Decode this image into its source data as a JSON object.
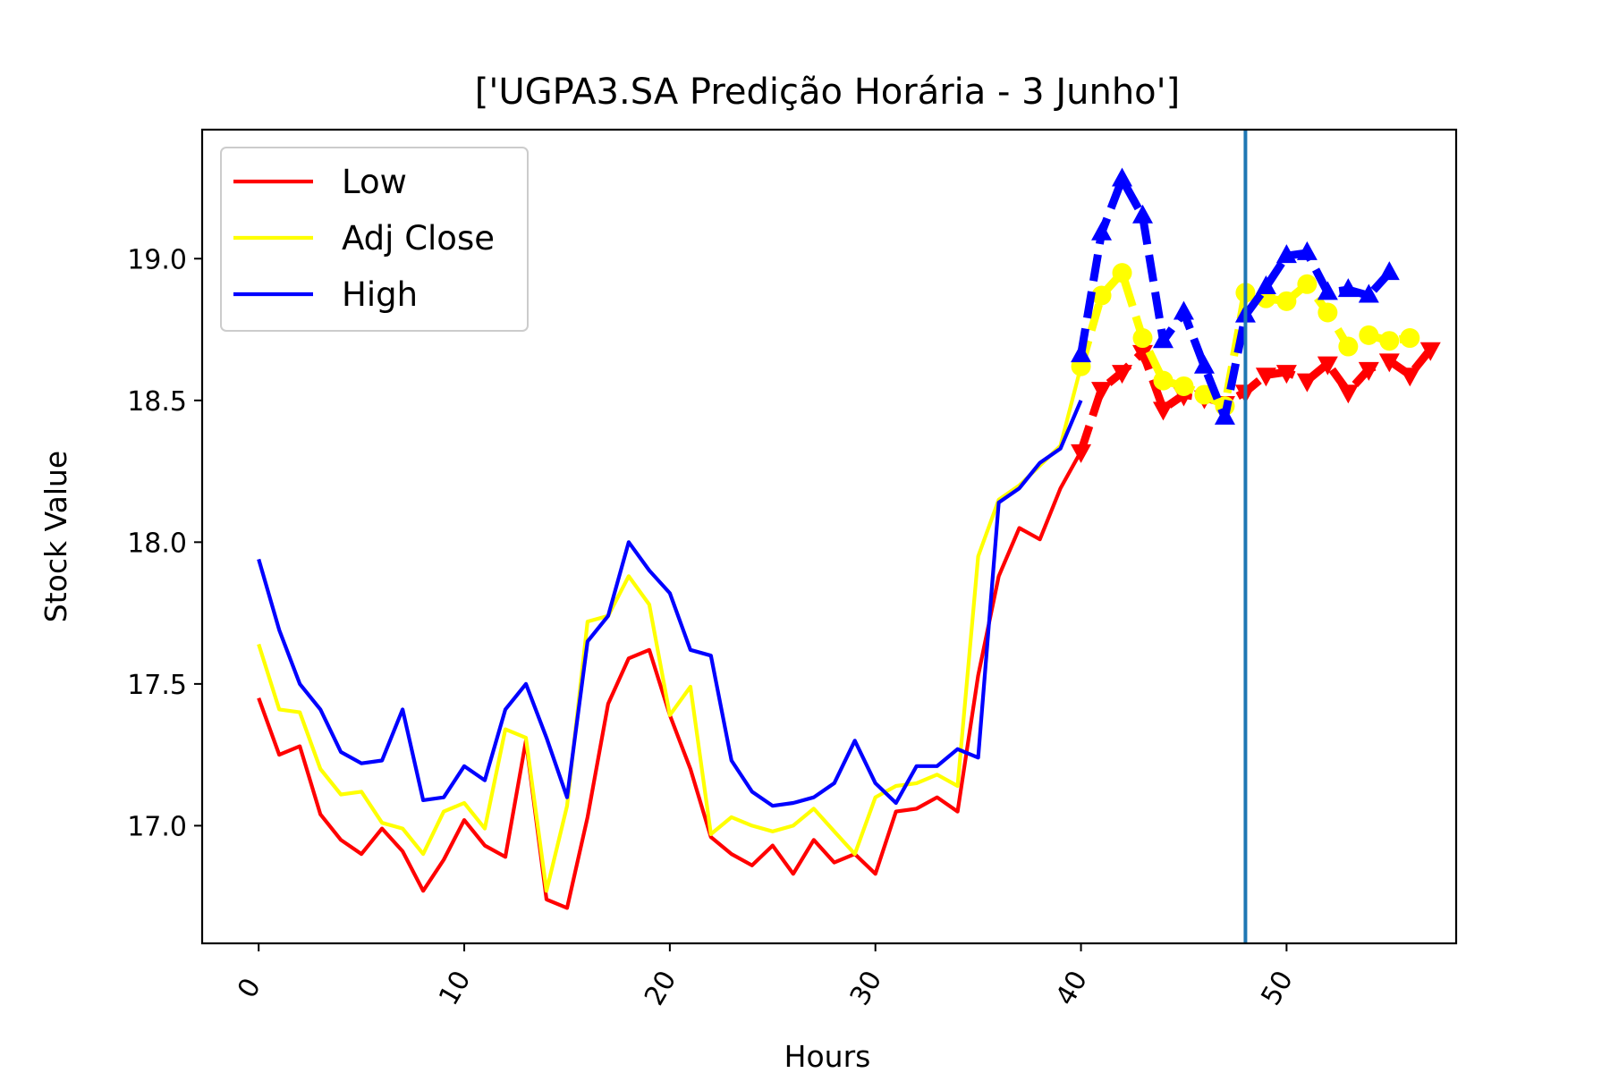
{
  "chart_data": {
    "type": "line",
    "title": "['UGPA3.SA Predição Horária - 3 Junho']",
    "xlabel": "Hours",
    "ylabel": "Stock Value",
    "xlim": [
      -2.75,
      58.25
    ],
    "ylim": [
      16.585,
      19.455
    ],
    "xticks": [
      0,
      10,
      20,
      30,
      40,
      50
    ],
    "xtick_labels": [
      "0",
      "10",
      "20",
      "30",
      "40",
      "50"
    ],
    "yticks": [
      17.0,
      17.5,
      18.0,
      18.5,
      19.0
    ],
    "ytick_labels": [
      "17.0",
      "17.5",
      "18.0",
      "18.5",
      "19.0"
    ],
    "grid": false,
    "legend_position": "top-left",
    "vline_x": 48,
    "vline_color": "#1f77b4",
    "series": [
      {
        "name": "Low",
        "color": "#ff0000",
        "values": [
          17.45,
          17.25,
          17.28,
          17.04,
          16.95,
          16.9,
          16.99,
          16.91,
          16.77,
          16.88,
          17.02,
          16.93,
          16.89,
          17.3,
          16.74,
          16.71,
          17.03,
          17.43,
          17.59,
          17.62,
          17.39,
          17.2,
          16.96,
          16.9,
          16.86,
          16.93,
          16.83,
          16.95,
          16.87,
          16.9,
          16.83,
          17.05,
          17.06,
          17.1,
          17.05,
          17.53,
          17.88,
          18.05,
          18.01,
          18.19,
          18.32
        ],
        "predicted": [
          18.32,
          18.54,
          18.6,
          18.67,
          18.47,
          18.52,
          18.51,
          18.49,
          18.53,
          18.59,
          18.6,
          18.57,
          18.63,
          18.53,
          18.61,
          18.64,
          18.59,
          18.68
        ]
      },
      {
        "name": "Adj Close",
        "color": "#ffff00",
        "values": [
          17.64,
          17.41,
          17.4,
          17.2,
          17.11,
          17.12,
          17.01,
          16.99,
          16.9,
          17.05,
          17.08,
          16.99,
          17.34,
          17.31,
          16.77,
          17.07,
          17.72,
          17.74,
          17.88,
          17.78,
          17.39,
          17.49,
          16.97,
          17.03,
          17.0,
          16.98,
          17.0,
          17.06,
          16.98,
          16.9,
          17.1,
          17.14,
          17.15,
          17.18,
          17.14,
          17.95,
          18.15,
          18.2,
          18.27,
          18.34,
          18.62
        ],
        "predicted": [
          18.62,
          18.87,
          18.95,
          18.72,
          18.57,
          18.55,
          18.52,
          18.48,
          18.88,
          18.86,
          18.85,
          18.91,
          18.81,
          18.69,
          18.73,
          18.71,
          18.72
        ]
      },
      {
        "name": "High",
        "color": "#0000ff",
        "values": [
          17.94,
          17.69,
          17.5,
          17.41,
          17.26,
          17.22,
          17.23,
          17.41,
          17.09,
          17.1,
          17.21,
          17.16,
          17.41,
          17.5,
          17.31,
          17.1,
          17.65,
          17.74,
          18.0,
          17.9,
          17.82,
          17.62,
          17.6,
          17.23,
          17.12,
          17.07,
          17.08,
          17.1,
          17.15,
          17.3,
          17.15,
          17.08,
          17.21,
          17.21,
          17.27,
          17.24,
          18.14,
          18.19,
          18.28,
          18.33,
          18.5
        ],
        "predicted": [
          18.66,
          19.09,
          19.28,
          19.15,
          18.71,
          18.81,
          18.62,
          18.44,
          18.8,
          18.9,
          19.01,
          19.02,
          18.88,
          18.89,
          18.87,
          18.95
        ]
      }
    ]
  }
}
